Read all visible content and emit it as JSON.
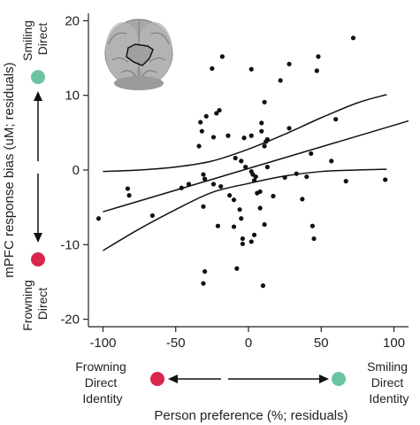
{
  "chart_data": {
    "type": "scatter",
    "title": "",
    "xlabel": "Person preference (%; residuals)",
    "ylabel": "mPFC response bias (uM; residuals)",
    "xlim": [
      -110,
      110
    ],
    "ylim": [
      -21,
      21
    ],
    "x_ticks": [
      -100,
      -50,
      0,
      50,
      100
    ],
    "y_ticks": [
      20,
      10,
      0,
      -10,
      -20
    ],
    "grid": false,
    "legend": "none",
    "point_color": "#111111",
    "fit": {
      "slope": 0.058,
      "intercept": 0.2
    },
    "ci_band": {
      "x": [
        -100,
        -75,
        -50,
        -25,
        0,
        25,
        50,
        75,
        95
      ],
      "upper": [
        -0.2,
        0.0,
        0.4,
        1.2,
        2.8,
        4.8,
        7.0,
        9.0,
        10.1
      ],
      "lower": [
        -10.8,
        -7.9,
        -5.3,
        -3.0,
        -1.8,
        -0.8,
        -0.2,
        0.0,
        0.1
      ]
    },
    "points": [
      [
        -103,
        -6.5
      ],
      [
        -83,
        -2.5
      ],
      [
        -82,
        -3.4
      ],
      [
        -66,
        -6.1
      ],
      [
        -46,
        -2.4
      ],
      [
        -41,
        -1.9
      ],
      [
        -31,
        -0.6
      ],
      [
        -18,
        15.2
      ],
      [
        -25,
        13.6
      ],
      [
        -33,
        6.4
      ],
      [
        -29,
        7.2
      ],
      [
        -22,
        7.6
      ],
      [
        -20,
        8.0
      ],
      [
        -34,
        3.2
      ],
      [
        -32,
        5.2
      ],
      [
        -24,
        4.4
      ],
      [
        -14,
        4.6
      ],
      [
        -30,
        -1.2
      ],
      [
        -24,
        -1.9
      ],
      [
        -19,
        -2.2
      ],
      [
        -13,
        -3.4
      ],
      [
        -10,
        -4.0
      ],
      [
        -31,
        -4.9
      ],
      [
        -21,
        -7.5
      ],
      [
        -10,
        -7.6
      ],
      [
        -8,
        -13.2
      ],
      [
        -30,
        -13.6
      ],
      [
        -31,
        -15.2
      ],
      [
        -6,
        -5.3
      ],
      [
        -5,
        -6.5
      ],
      [
        -4,
        -9.2
      ],
      [
        -4,
        -9.9
      ],
      [
        -5,
        1.2
      ],
      [
        -9,
        1.6
      ],
      [
        -3,
        4.3
      ],
      [
        2,
        13.5
      ],
      [
        2,
        4.6
      ],
      [
        -2,
        0.4
      ],
      [
        2,
        -0.2
      ],
      [
        3,
        -0.6
      ],
      [
        5,
        -0.9
      ],
      [
        6,
        -3.1
      ],
      [
        4,
        -1.4
      ],
      [
        9,
        5.2
      ],
      [
        9,
        6.3
      ],
      [
        11,
        9.1
      ],
      [
        12,
        3.8
      ],
      [
        11,
        3.2
      ],
      [
        13,
        4.1
      ],
      [
        13,
        0.4
      ],
      [
        8,
        -2.9
      ],
      [
        8,
        -5.1
      ],
      [
        4,
        -8.7
      ],
      [
        2,
        -9.6
      ],
      [
        11,
        -7.3
      ],
      [
        10,
        -15.5
      ],
      [
        17,
        -3.5
      ],
      [
        22,
        12.0
      ],
      [
        28,
        14.2
      ],
      [
        25,
        -1.0
      ],
      [
        28,
        5.6
      ],
      [
        33,
        -0.5
      ],
      [
        37,
        -3.9
      ],
      [
        40,
        -0.9
      ],
      [
        43,
        2.2
      ],
      [
        44,
        -7.5
      ],
      [
        45,
        -9.2
      ],
      [
        47,
        13.3
      ],
      [
        48,
        15.2
      ],
      [
        57,
        1.2
      ],
      [
        60,
        6.8
      ],
      [
        67,
        -1.5
      ],
      [
        72,
        17.7
      ],
      [
        94,
        -1.3
      ]
    ],
    "left_axis_ends": {
      "top_label": "Smiling Direct",
      "bottom_label": "Frowning Direct",
      "top_color": "#6cc3a1",
      "bottom_color": "#d8264c"
    },
    "bottom_axis_ends": {
      "left_label_line1": "Frowning",
      "left_label_line2": "Direct",
      "left_label_line3": "Identity",
      "right_label_line1": "Smiling",
      "right_label_line2": "Direct",
      "right_label_line3": "Identity",
      "left_color": "#d8264c",
      "right_color": "#6cc3a1"
    }
  },
  "inset": {
    "icon": "brain-mpfc-roi-icon",
    "color": "#9a9a9a"
  }
}
